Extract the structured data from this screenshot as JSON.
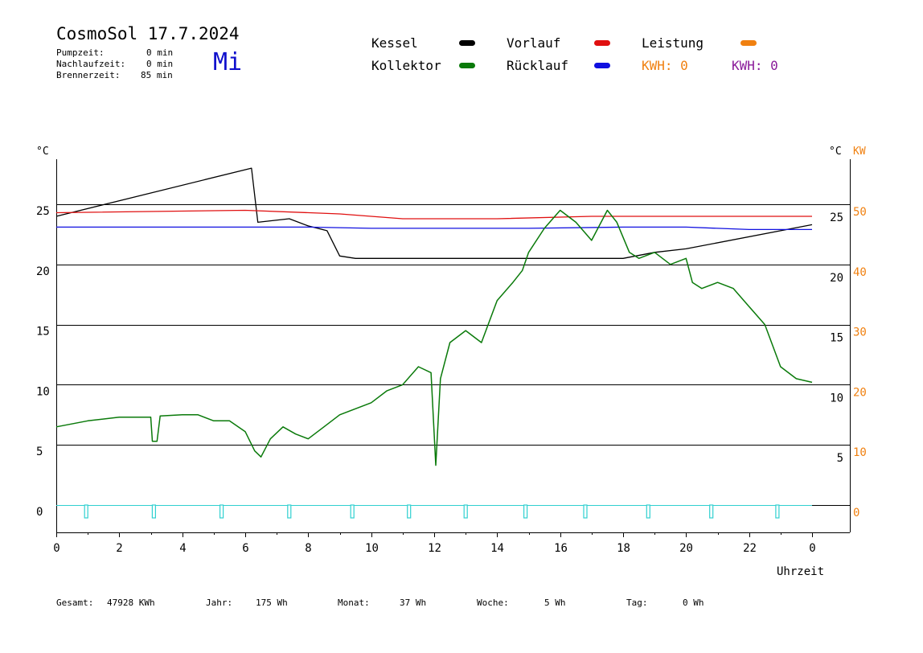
{
  "header": {
    "title": "CosmoSol 17.7.2024",
    "pumpzeit_label": "Pumpzeit:",
    "pumpzeit_value": "0 min",
    "nachlaufzeit_label": "Nachlaufzeit:",
    "nachlaufzeit_value": "0 min",
    "brennerzeit_label": "Brennerzeit:",
    "brennerzeit_value": "85 min",
    "weekday": "Mi"
  },
  "legend": {
    "kessel": "Kessel",
    "kollektor": "Kollektor",
    "vorlauf": "Vorlauf",
    "ruecklauf": "Rücklauf",
    "leistung": "Leistung",
    "kwh1": "KWH: 0",
    "kwh2": "KWH: 0",
    "colors": {
      "kessel": "#000000",
      "kollektor": "#0a7a0a",
      "vorlauf": "#e01010",
      "ruecklauf": "#1010e0",
      "leistung": "#f08010",
      "kwh2": "#8a1a9a",
      "pump": "#30d0d0"
    }
  },
  "footer": {
    "gesamt_label": "Gesamt:",
    "gesamt_value": "47928 KWh",
    "jahr_label": "Jahr:",
    "jahr_value": "175 Wh",
    "monat_label": "Monat:",
    "monat_value": "37 Wh",
    "woche_label": "Woche:",
    "woche_value": "5 Wh",
    "tag_label": "Tag:",
    "tag_value": "0 Wh"
  },
  "chart_data": {
    "type": "line",
    "xlabel": "Uhrzeit",
    "ylabel_left": "°C",
    "ylabel_right": "°C",
    "ylabel_right2": "KW",
    "x_ticks": [
      "0",
      "2",
      "4",
      "6",
      "8",
      "10",
      "12",
      "14",
      "16",
      "18",
      "20",
      "22",
      "0"
    ],
    "y_ticks_left": [
      "0",
      "5",
      "10",
      "15",
      "20",
      "25"
    ],
    "y_ticks_right": [
      "5",
      "10",
      "15",
      "20",
      "25"
    ],
    "y_ticks_kw": [
      "0",
      "10",
      "20",
      "30",
      "40",
      "50"
    ],
    "xlim": [
      0,
      24
    ],
    "ylim": [
      -2.2,
      28.5
    ],
    "gridlines_y": [
      0,
      5,
      10,
      15,
      20,
      25
    ],
    "series": [
      {
        "name": "Kessel",
        "color": "#000000",
        "points": [
          [
            0,
            24
          ],
          [
            6.2,
            28
          ],
          [
            6.4,
            23.5
          ],
          [
            7.4,
            23.8
          ],
          [
            8.0,
            23.2
          ],
          [
            8.6,
            22.8
          ],
          [
            9.0,
            20.7
          ],
          [
            9.5,
            20.5
          ],
          [
            18,
            20.5
          ],
          [
            19.0,
            21.0
          ],
          [
            20.0,
            21.3
          ],
          [
            24,
            23.3
          ]
        ]
      },
      {
        "name": "Vorlauf",
        "color": "#e01010",
        "points": [
          [
            0,
            24.3
          ],
          [
            6,
            24.5
          ],
          [
            9,
            24.2
          ],
          [
            11,
            23.8
          ],
          [
            14,
            23.8
          ],
          [
            17,
            24
          ],
          [
            20,
            24
          ],
          [
            24,
            24
          ]
        ]
      },
      {
        "name": "Rücklauf",
        "color": "#1010e0",
        "points": [
          [
            0,
            23.1
          ],
          [
            8,
            23.1
          ],
          [
            10,
            23
          ],
          [
            15,
            23
          ],
          [
            18,
            23.1
          ],
          [
            20,
            23.1
          ],
          [
            22,
            22.9
          ],
          [
            24,
            22.9
          ]
        ]
      },
      {
        "name": "Kollektor",
        "color": "#0a7a0a",
        "points": [
          [
            0,
            6.5
          ],
          [
            1,
            7
          ],
          [
            2,
            7.3
          ],
          [
            3,
            7.3
          ],
          [
            3.05,
            5.3
          ],
          [
            3.2,
            5.3
          ],
          [
            3.3,
            7.4
          ],
          [
            4,
            7.5
          ],
          [
            4.5,
            7.5
          ],
          [
            5.0,
            7.0
          ],
          [
            5.5,
            7.0
          ],
          [
            6.0,
            6.1
          ],
          [
            6.3,
            4.5
          ],
          [
            6.5,
            4.0
          ],
          [
            6.8,
            5.5
          ],
          [
            7.2,
            6.5
          ],
          [
            7.6,
            5.9
          ],
          [
            8.0,
            5.5
          ],
          [
            8.5,
            6.5
          ],
          [
            9.0,
            7.5
          ],
          [
            9.5,
            8.0
          ],
          [
            10.0,
            8.5
          ],
          [
            10.5,
            9.5
          ],
          [
            11.0,
            10.0
          ],
          [
            11.5,
            11.5
          ],
          [
            11.9,
            11.0
          ],
          [
            12.05,
            3.3
          ],
          [
            12.2,
            10.5
          ],
          [
            12.5,
            13.5
          ],
          [
            13.0,
            14.5
          ],
          [
            13.5,
            13.5
          ],
          [
            14.0,
            17.0
          ],
          [
            14.5,
            18.5
          ],
          [
            14.8,
            19.5
          ],
          [
            15.0,
            21.0
          ],
          [
            15.5,
            23.0
          ],
          [
            16.0,
            24.5
          ],
          [
            16.5,
            23.5
          ],
          [
            17.0,
            22.0
          ],
          [
            17.5,
            24.5
          ],
          [
            17.8,
            23.5
          ],
          [
            18.2,
            21.0
          ],
          [
            18.5,
            20.5
          ],
          [
            19.0,
            21.0
          ],
          [
            19.5,
            20.0
          ],
          [
            20.0,
            20.5
          ],
          [
            20.2,
            18.5
          ],
          [
            20.5,
            18.0
          ],
          [
            21.0,
            18.5
          ],
          [
            21.5,
            18.0
          ],
          [
            22.0,
            16.5
          ],
          [
            22.5,
            15.0
          ],
          [
            23.0,
            11.5
          ],
          [
            23.5,
            10.5
          ],
          [
            24,
            10.2
          ]
        ]
      }
    ],
    "pump_markers_x": [
      0.95,
      3.1,
      5.25,
      7.4,
      9.4,
      11.2,
      13.0,
      14.9,
      16.8,
      18.8,
      20.8,
      22.9
    ]
  }
}
